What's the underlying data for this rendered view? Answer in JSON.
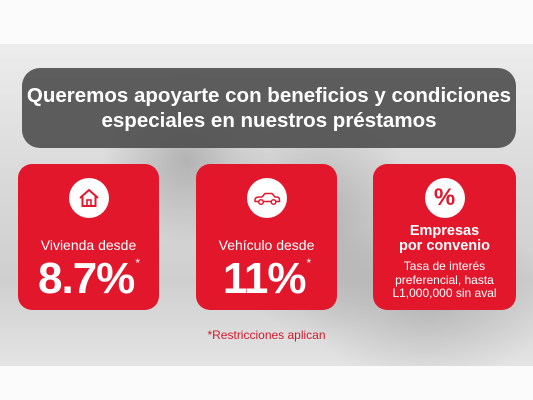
{
  "headline": {
    "line1": "Queremos apoyarte con beneficios y condiciones",
    "line2": "especiales en nuestros préstamos"
  },
  "cards": [
    {
      "icon": "house-icon",
      "label": "Vivienda desde",
      "rate": "8.7%",
      "mark": "*"
    },
    {
      "icon": "car-icon",
      "label": "Vehículo desde",
      "rate": "11%",
      "mark": "*"
    },
    {
      "icon": "percent-icon",
      "icon_glyph": "%",
      "title_line1": "Empresas",
      "title_line2": "por convenio",
      "desc_line1": "Tasa de interés",
      "desc_line2": "preferencial, hasta",
      "desc_line3": "L1,000,000 sin aval"
    }
  ],
  "note": "*Restricciones aplican",
  "colors": {
    "accent": "#e3172c",
    "banner": "#505050",
    "text_light": "#ffffff"
  }
}
